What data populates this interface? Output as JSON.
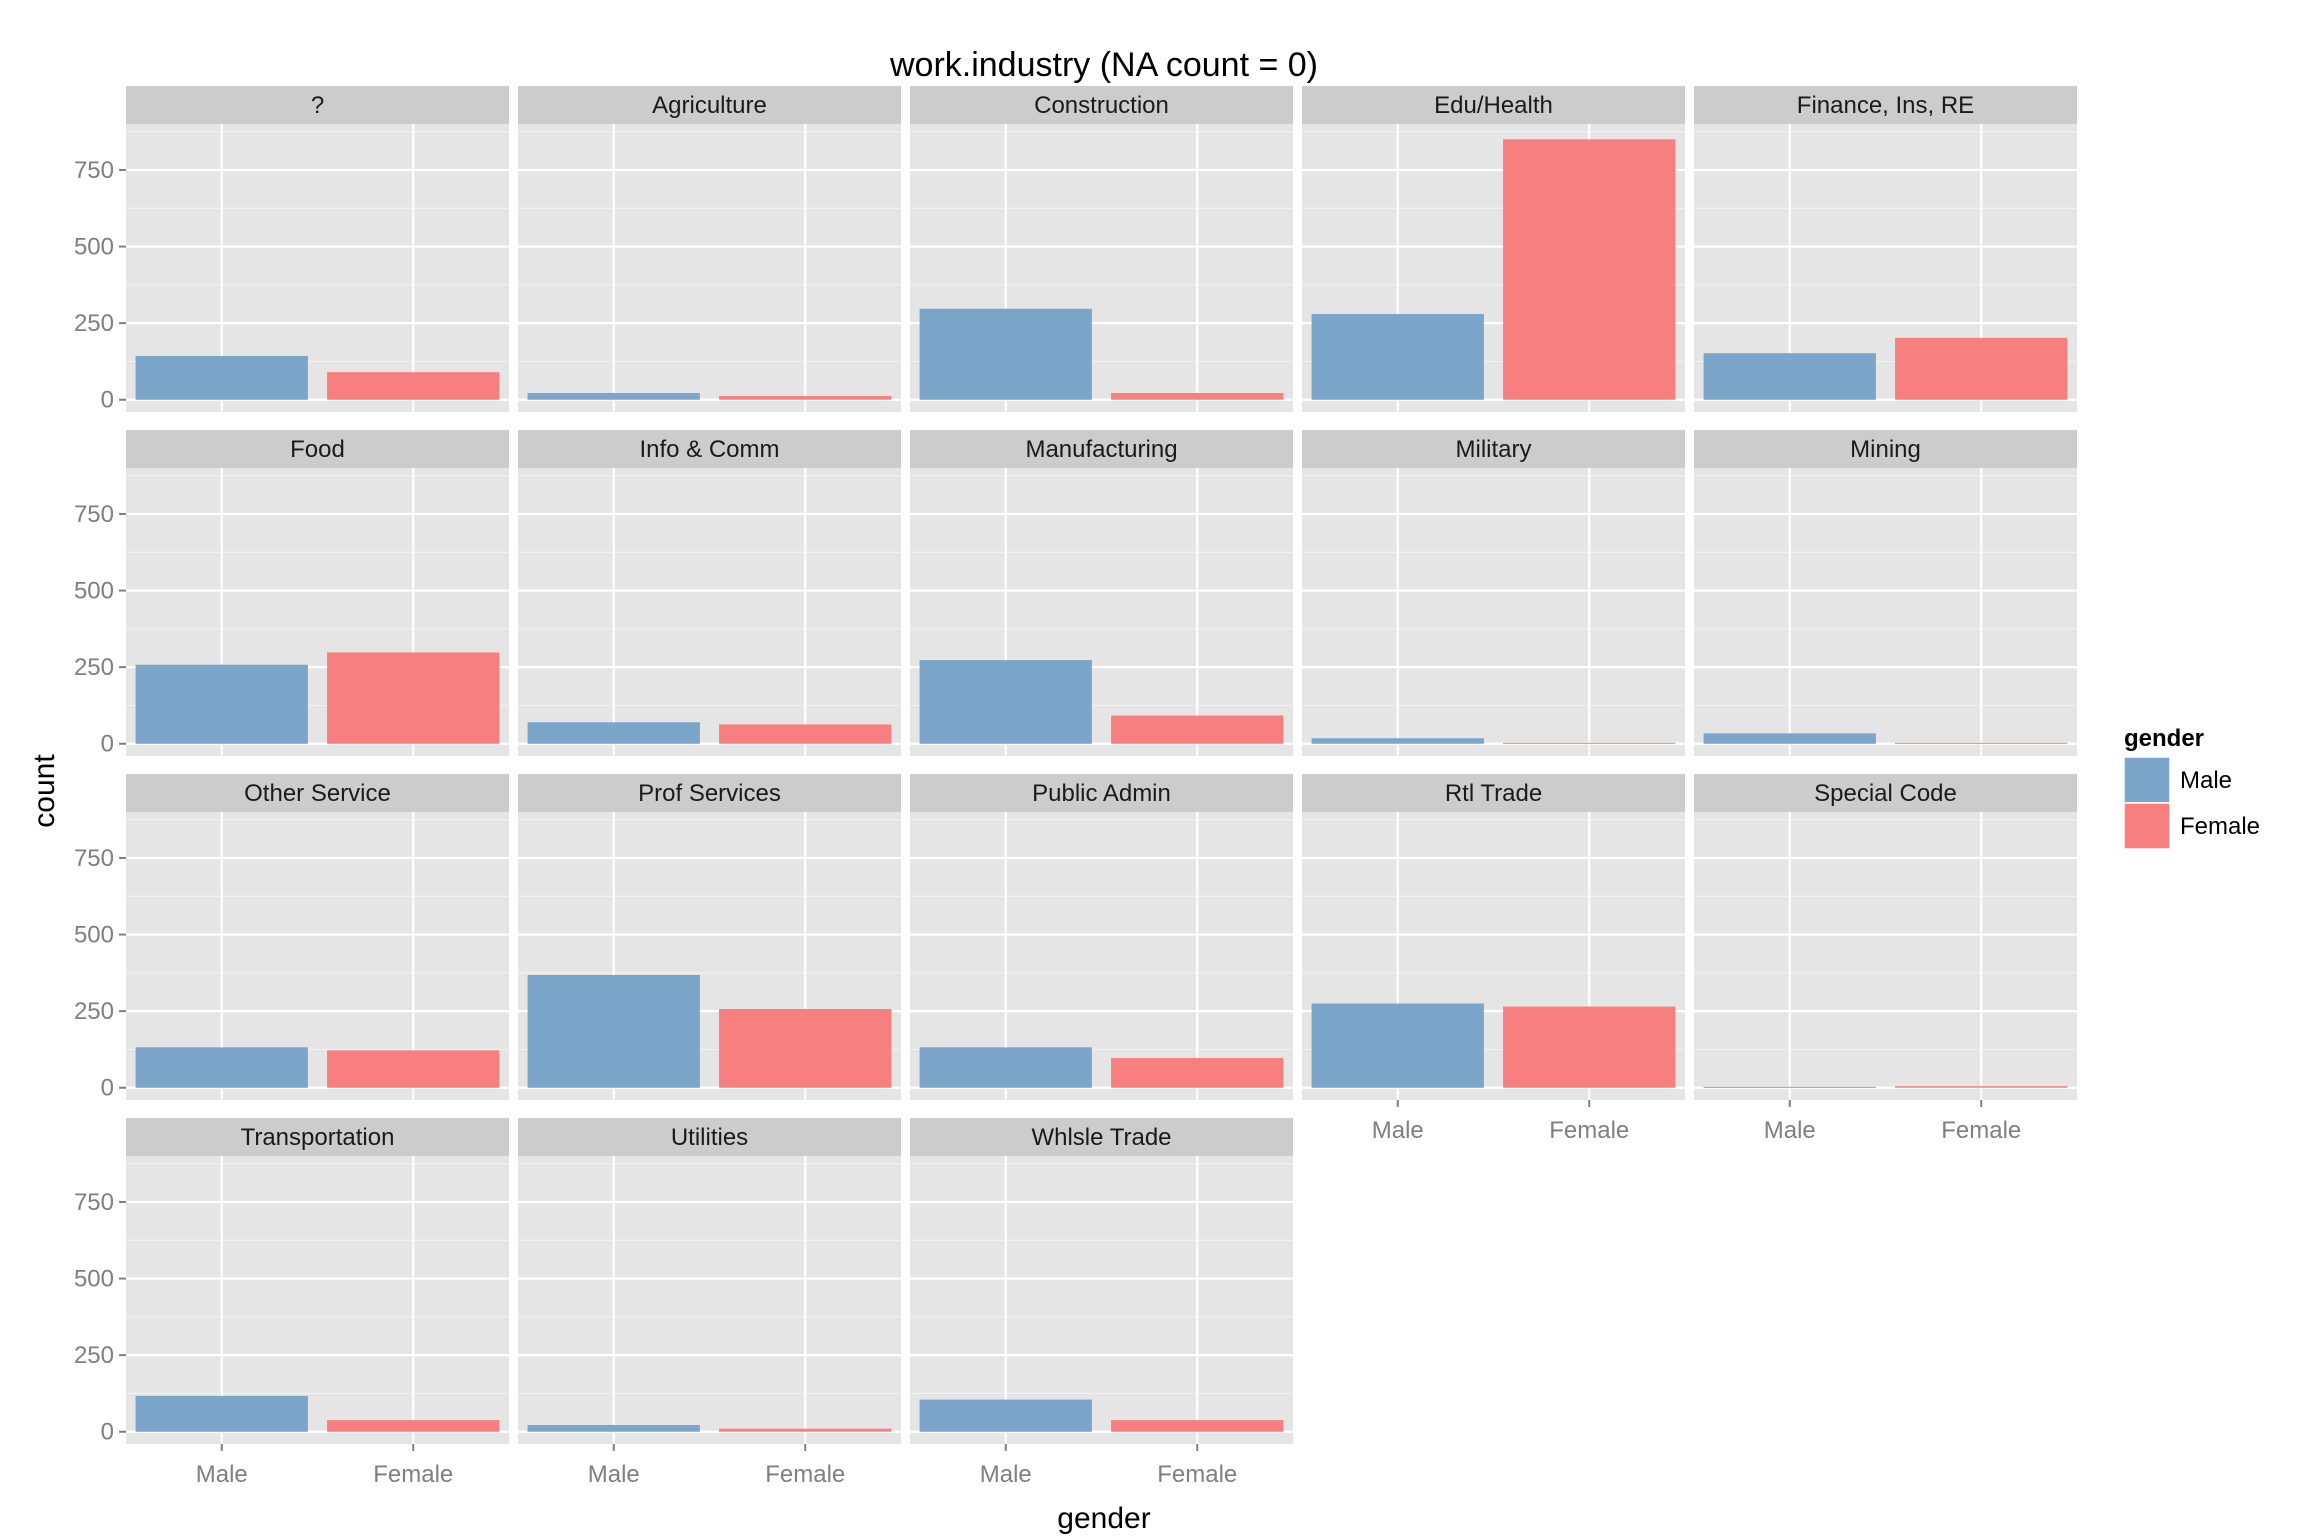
{
  "chart_data": {
    "type": "bar",
    "title": "work.industry (NA count = 0)",
    "xlabel": "gender",
    "ylabel": "count",
    "categories": [
      "Male",
      "Female"
    ],
    "ylim": [
      -40,
      900
    ],
    "yticks": [
      0,
      250,
      500,
      750
    ],
    "facet_columns": 5,
    "legend": {
      "title": "gender",
      "position": "right",
      "entries": [
        {
          "name": "Male",
          "color": "#7BA6C9"
        },
        {
          "name": "Female",
          "color": "#F77F7F"
        }
      ]
    },
    "colors": {
      "Male": "#7BA6C9",
      "Female": "#F77F7F"
    },
    "panels": [
      {
        "label": "?",
        "values": [
          143,
          90
        ]
      },
      {
        "label": "Agriculture",
        "values": [
          22,
          12
        ]
      },
      {
        "label": "Construction",
        "values": [
          297,
          22
        ]
      },
      {
        "label": "Edu/Health",
        "values": [
          280,
          850
        ]
      },
      {
        "label": "Finance, Ins, RE",
        "values": [
          152,
          202
        ]
      },
      {
        "label": "Food",
        "values": [
          258,
          298
        ]
      },
      {
        "label": "Info & Comm",
        "values": [
          70,
          63
        ]
      },
      {
        "label": "Manufacturing",
        "values": [
          273,
          92
        ]
      },
      {
        "label": "Military",
        "values": [
          18,
          3
        ]
      },
      {
        "label": "Mining",
        "values": [
          34,
          3
        ]
      },
      {
        "label": "Other Service",
        "values": [
          132,
          122
        ]
      },
      {
        "label": "Prof Services",
        "values": [
          368,
          257
        ]
      },
      {
        "label": "Public Admin",
        "values": [
          132,
          97
        ]
      },
      {
        "label": "Rtl Trade",
        "values": [
          275,
          265
        ]
      },
      {
        "label": "Special Code",
        "values": [
          3,
          5
        ]
      },
      {
        "label": "Transportation",
        "values": [
          117,
          38
        ]
      },
      {
        "label": "Utilities",
        "values": [
          22,
          10
        ]
      },
      {
        "label": "Whlsle Trade",
        "values": [
          105,
          38
        ]
      }
    ]
  }
}
